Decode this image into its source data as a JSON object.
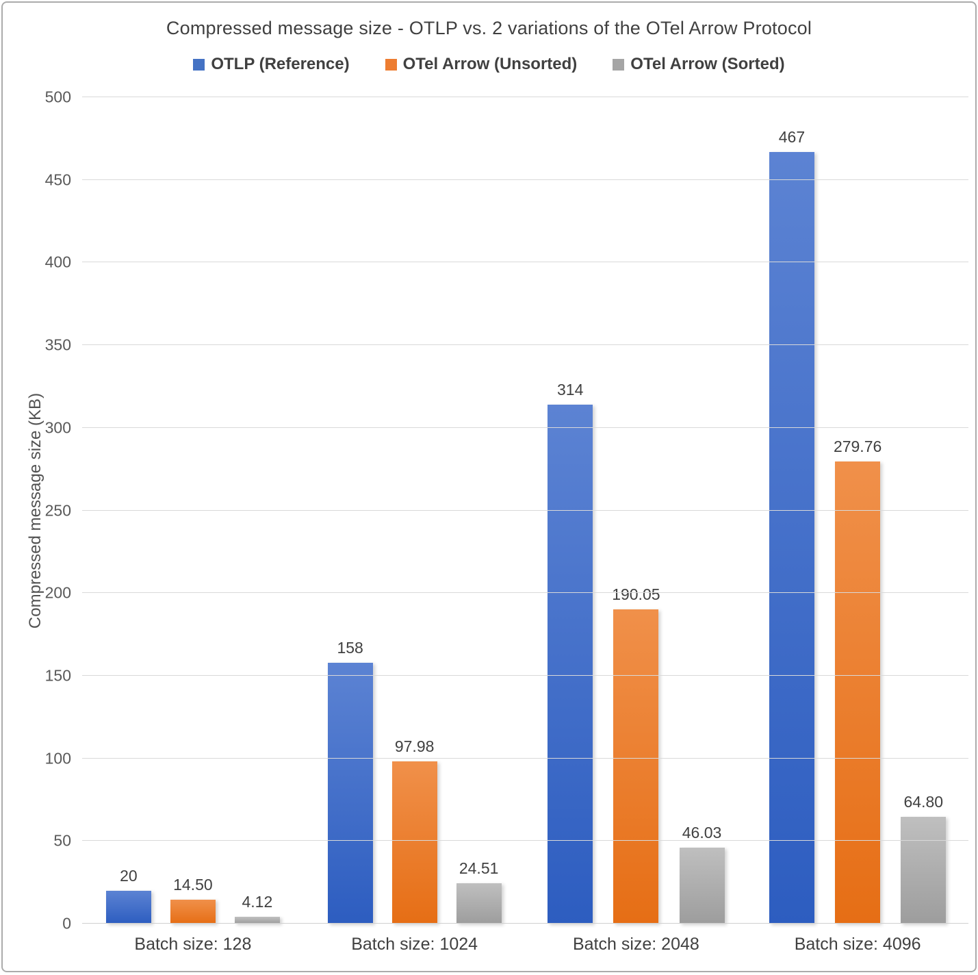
{
  "chart_data": {
    "type": "bar",
    "title": "Compressed message size - OTLP vs. 2 variations of the OTel Arrow Protocol",
    "xlabel": "",
    "ylabel": "Compressed message size (KB)",
    "ylim": [
      0,
      500
    ],
    "ytick_step": 50,
    "yticks": [
      0,
      50,
      100,
      150,
      200,
      250,
      300,
      350,
      400,
      450,
      500
    ],
    "grid": true,
    "legend_position": "top",
    "categories": [
      "Batch size: 128",
      "Batch size: 1024",
      "Batch size: 2048",
      "Batch size: 4096"
    ],
    "series": [
      {
        "name": "OTLP (Reference)",
        "values": [
          20,
          158,
          314,
          467
        ],
        "labels": [
          "20",
          "158",
          "314",
          "467"
        ],
        "legend_color": "#4472C4",
        "color_top": "#5c83d3",
        "color_bottom": "#2d5dc0"
      },
      {
        "name": "OTel Arrow (Unsorted)",
        "values": [
          14.5,
          97.98,
          190.05,
          279.76
        ],
        "labels": [
          "14.50",
          "97.98",
          "190.05",
          "279.76"
        ],
        "legend_color": "#ED7D31",
        "color_top": "#f0904a",
        "color_bottom": "#e66e15"
      },
      {
        "name": "OTel Arrow (Sorted)",
        "values": [
          4.12,
          24.51,
          46.03,
          64.8
        ],
        "labels": [
          "4.12",
          "24.51",
          "46.03",
          "64.80"
        ],
        "legend_color": "#A5A5A5",
        "color_top": "#bfbfbf",
        "color_bottom": "#9d9d9d"
      }
    ]
  }
}
